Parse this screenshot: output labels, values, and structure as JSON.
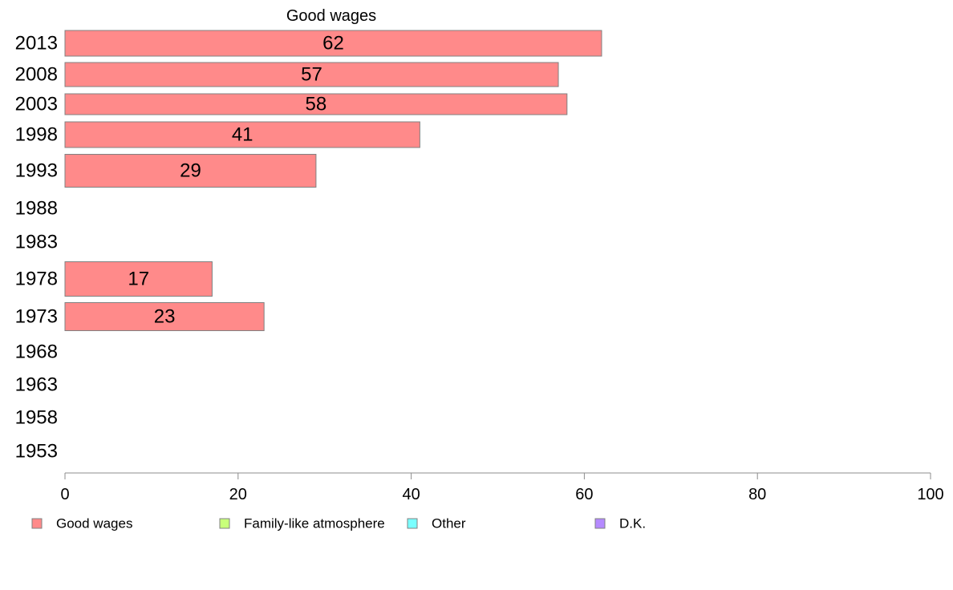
{
  "chart_data": {
    "type": "bar",
    "orientation": "horizontal",
    "title": "Good wages",
    "xlabel": "",
    "ylabel": "",
    "xlim": [
      0,
      100
    ],
    "x_ticks": [
      0,
      20,
      40,
      60,
      80,
      100
    ],
    "categories": [
      "2013",
      "2008",
      "2003",
      "1998",
      "1993",
      "1988",
      "1983",
      "1978",
      "1973",
      "1968",
      "1963",
      "1958",
      "1953"
    ],
    "series": [
      {
        "name": "Good wages",
        "color": "#ff8a8a",
        "values": [
          62,
          57,
          58,
          41,
          29,
          null,
          null,
          17,
          23,
          null,
          null,
          null,
          null
        ],
        "data_labels": [
          "62",
          "57",
          "58",
          "41",
          "29",
          "",
          "",
          "17",
          "23",
          "",
          "",
          "",
          ""
        ]
      }
    ],
    "legend": {
      "placement": "bottom",
      "items": [
        {
          "label": "Good wages",
          "color": "#ff8a8a"
        },
        {
          "label": "Family-like atmosphere",
          "color": "#c8ff7a"
        },
        {
          "label": "Other",
          "color": "#7affff"
        },
        {
          "label": "D.K.",
          "color": "#b58aff"
        }
      ]
    },
    "grid": false
  }
}
